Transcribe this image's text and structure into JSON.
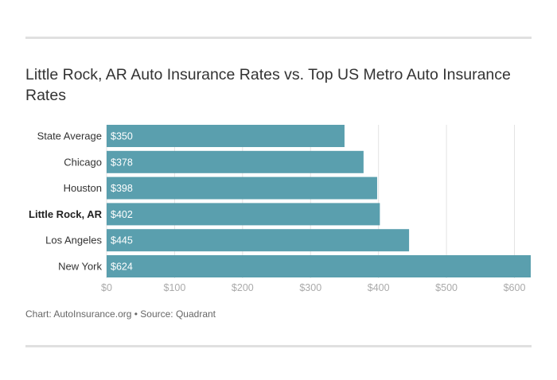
{
  "page": {
    "title": "Little Rock, AR Auto Insurance Rates vs. Top US Metro Auto Insurance Rates",
    "caption": "Chart: AutoInsurance.org • Source: Quadrant"
  },
  "chart_data": {
    "type": "bar",
    "orientation": "horizontal",
    "title": "Little Rock, AR Auto Insurance Rates vs. Top US Metro Auto Insurance Rates",
    "categories": [
      "State Average",
      "Chicago",
      "Houston",
      "Little Rock, AR",
      "Los Angeles",
      "New York"
    ],
    "highlight_category": "Little Rock, AR",
    "values": [
      350,
      378,
      398,
      402,
      445,
      624
    ],
    "data_labels": [
      "$350",
      "$378",
      "$398",
      "$402",
      "$445",
      "$624"
    ],
    "xlim": [
      0,
      624
    ],
    "x_ticks": [
      0,
      100,
      200,
      300,
      400,
      500,
      600
    ],
    "x_tick_labels": [
      "$0",
      "$100",
      "$200",
      "$300",
      "$400",
      "$500",
      "$600"
    ],
    "grid": true,
    "legend": "none",
    "colors": {
      "bar": "#5a9fae",
      "grid": "#e3e3e3",
      "tick_label": "#aaaaaa",
      "data_label": "#ffffff"
    }
  }
}
